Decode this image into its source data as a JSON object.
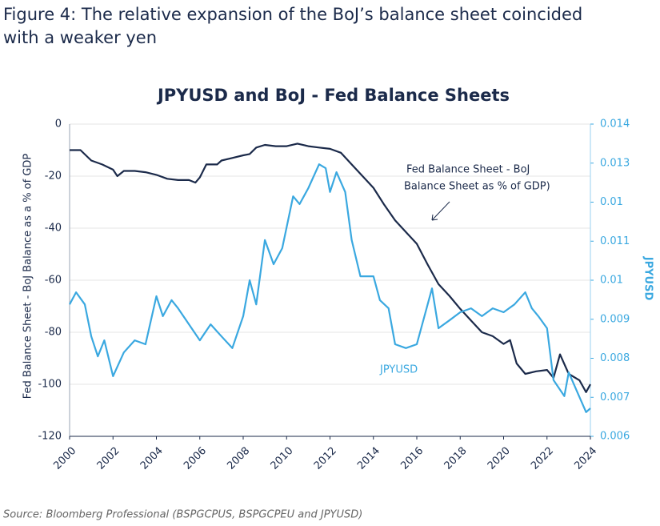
{
  "figure_title": [
    "Figure 4: The relative expansion of the BoJ’s balance sheet coincided",
    "with a weaker yen"
  ],
  "source": "Source: Bloomberg Professional (BSPGCPUS, BSPGCPEU and JPYUSD)",
  "chart_data": {
    "type": "line",
    "title": "JPYUSD and BoJ - Fed Balance Sheets",
    "ylabel": "Fed Balance Sheet - BoJ Balance as a % of GDP",
    "y2label": "JPYUSD",
    "annotations": [
      "Fed Balance Sheet - BoJ",
      "Balance Sheet as % of GDP)"
    ],
    "xlim": [
      2000,
      2024
    ],
    "xticks": [
      2000,
      2002,
      2004,
      2006,
      2008,
      2010,
      2012,
      2014,
      2016,
      2018,
      2020,
      2022,
      2024
    ],
    "ylim": [
      -120,
      0
    ],
    "yticks": [
      0,
      -20,
      -40,
      -60,
      -80,
      -100,
      -120
    ],
    "y2lim": [
      0.006,
      0.014
    ],
    "y2ticks": [
      0.014,
      0.013,
      {
        "value": 0.012,
        "label": "0.01"
      },
      0.011,
      0.01,
      0.009,
      0.008,
      0.007,
      0.006
    ],
    "grid": true,
    "series": [
      {
        "color": "#1b2a4a",
        "x": [
          2000,
          2000.5,
          2001,
          2001.5,
          2002,
          2002.2,
          2002.5,
          2003,
          2003.5,
          2004,
          2004.5,
          2005,
          2005.5,
          2005.8,
          2006,
          2006.3,
          2006.8,
          2007,
          2007.5,
          2008,
          2008.3,
          2008.6,
          2009,
          2009.5,
          2010,
          2010.5,
          2011,
          2011.5,
          2012,
          2012.5,
          2013,
          2013.5,
          2014,
          2014.5,
          2015,
          2015.5,
          2016,
          2016.5,
          2017,
          2017.5,
          2018,
          2018.5,
          2019,
          2019.5,
          2020,
          2020.3,
          2020.6,
          2021,
          2021.5,
          2022,
          2022.3,
          2022.6,
          2023,
          2023.5,
          2023.8,
          2024
        ],
        "values": [
          -10,
          -10,
          -14,
          -15.5,
          -17.5,
          -20,
          -18,
          -18,
          -18.5,
          -19.5,
          -21,
          -21.5,
          -21.5,
          -22.5,
          -20.5,
          -15.5,
          -15.5,
          -14,
          -13,
          -12,
          -11.5,
          -9,
          -8,
          -8.5,
          -8.5,
          -7.5,
          -8.5,
          -9,
          -9.5,
          -11,
          -15.5,
          -20,
          -24.5,
          -31,
          -37,
          -41.5,
          -46,
          -54,
          -61.5,
          -66,
          -71,
          -75.5,
          -80,
          -81.5,
          -84.5,
          -83,
          -92,
          -96,
          -95,
          -94.5,
          -97.5,
          -88.5,
          -96,
          -98.5,
          -103,
          -100
        ]
      },
      {
        "name": "JPYUSD",
        "color": "#3aa8e0",
        "axis": "y2",
        "x": [
          2000,
          2000.3,
          2000.7,
          2001,
          2001.3,
          2001.6,
          2002,
          2002.5,
          2003,
          2003.5,
          2004,
          2004.3,
          2004.7,
          2005,
          2005.5,
          2006,
          2006.5,
          2007,
          2007.5,
          2008,
          2008.3,
          2008.6,
          2009,
          2009.4,
          2009.8,
          2010.3,
          2010.6,
          2011,
          2011.5,
          2011.8,
          2012,
          2012.3,
          2012.7,
          2013,
          2013.4,
          2014,
          2014.3,
          2014.7,
          2015,
          2015.5,
          2016,
          2016.4,
          2016.7,
          2017,
          2017.5,
          2018,
          2018.5,
          2019,
          2019.5,
          2020,
          2020.5,
          2021,
          2021.3,
          2021.6,
          2022,
          2022.3,
          2022.8,
          2023,
          2023.4,
          2023.8,
          2024
        ],
        "values": [
          0.00938,
          0.00969,
          0.00938,
          0.00856,
          0.00805,
          0.00846,
          0.00754,
          0.00815,
          0.00846,
          0.00836,
          0.00959,
          0.00908,
          0.00949,
          0.00928,
          0.00887,
          0.00846,
          0.00887,
          0.00856,
          0.00826,
          0.00908,
          0.01,
          0.00938,
          0.01103,
          0.01041,
          0.01082,
          0.01215,
          0.01195,
          0.01236,
          0.01297,
          0.01287,
          0.01226,
          0.01277,
          0.01226,
          0.01103,
          0.0101,
          0.0101,
          0.00949,
          0.00928,
          0.00836,
          0.00826,
          0.00836,
          0.00918,
          0.00979,
          0.00877,
          0.00897,
          0.00918,
          0.00928,
          0.00908,
          0.00928,
          0.00918,
          0.00938,
          0.00969,
          0.00928,
          0.00908,
          0.00877,
          0.00744,
          0.00703,
          0.00764,
          0.00713,
          0.00662,
          0.00672
        ]
      }
    ]
  }
}
